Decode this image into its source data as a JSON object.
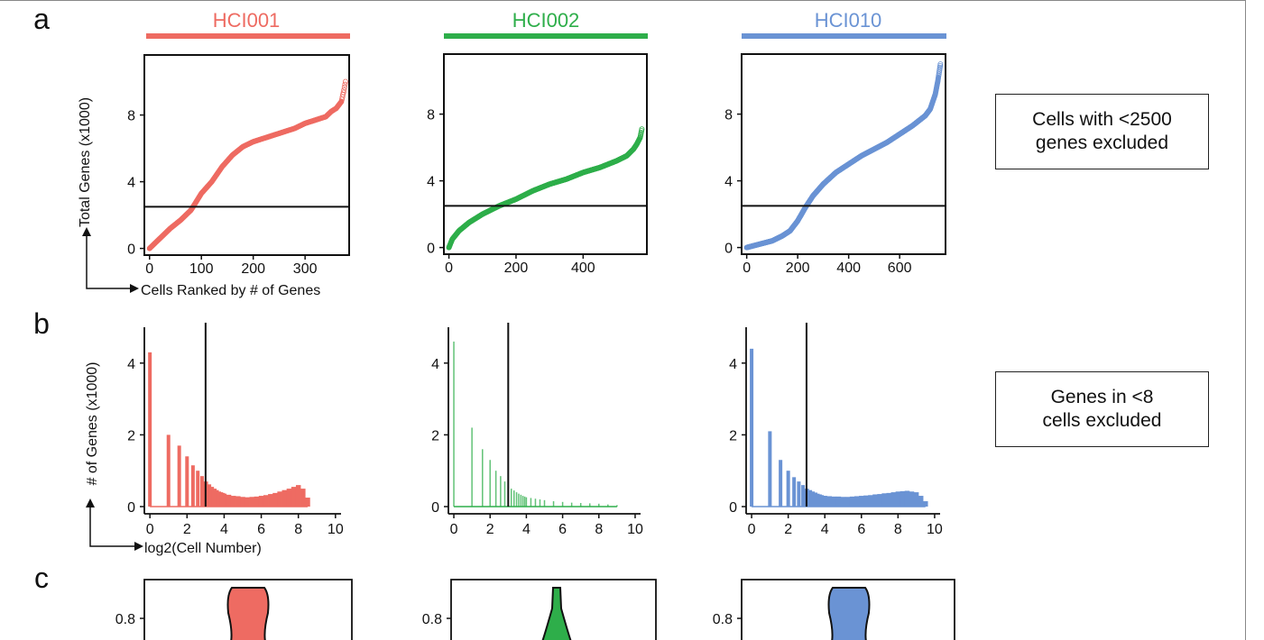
{
  "panel_letters": [
    "a",
    "b",
    "c"
  ],
  "sample_names": [
    "HCI001",
    "HCI002",
    "HCI010"
  ],
  "colors": {
    "HCI001": "#ee6b62",
    "HCI002": "#2eae4a",
    "HCI010": "#6a93d4",
    "axis": "#111111"
  },
  "notes": {
    "genes_filter": "Cells with <2500\ngenes excluded",
    "cells_filter": "Genes in <8\ncells excluded"
  },
  "chart_data": [
    {
      "type": "scatter",
      "panel": "a",
      "title": "HCI001",
      "xlabel": "Cells Ranked by # of Genes",
      "ylabel": "Total Genes (x1000)",
      "xlim": [
        -10,
        385
      ],
      "ylim": [
        -0.4,
        11.6
      ],
      "xticks": [
        0,
        100,
        200,
        300
      ],
      "yticks": [
        0,
        4,
        8
      ],
      "threshold_y": 2.5,
      "series": [
        {
          "x": [
            0,
            20,
            40,
            60,
            80,
            100,
            120,
            140,
            160,
            180,
            200,
            220,
            240,
            260,
            280,
            300,
            320,
            340,
            350,
            360,
            370,
            375,
            378
          ],
          "values": [
            0,
            0.6,
            1.2,
            1.7,
            2.3,
            3.3,
            4.0,
            4.9,
            5.6,
            6.1,
            6.4,
            6.6,
            6.8,
            7.0,
            7.2,
            7.5,
            7.7,
            7.9,
            8.2,
            8.4,
            8.8,
            9.5,
            10.0
          ]
        }
      ]
    },
    {
      "type": "scatter",
      "panel": "a",
      "title": "HCI002",
      "xlabel": "",
      "ylabel": "",
      "xlim": [
        -15,
        590
      ],
      "ylim": [
        -0.4,
        11.6
      ],
      "xticks": [
        0,
        200,
        400
      ],
      "yticks": [
        0,
        4,
        8
      ],
      "threshold_y": 2.5,
      "series": [
        {
          "x": [
            0,
            10,
            30,
            60,
            100,
            150,
            200,
            250,
            300,
            350,
            400,
            450,
            500,
            530,
            550,
            560,
            570,
            575
          ],
          "values": [
            0,
            0.5,
            1.0,
            1.5,
            2.0,
            2.5,
            2.9,
            3.4,
            3.8,
            4.1,
            4.5,
            4.8,
            5.2,
            5.5,
            5.9,
            6.2,
            6.6,
            7.1
          ]
        }
      ]
    },
    {
      "type": "scatter",
      "panel": "a",
      "title": "HCI010",
      "xlabel": "",
      "ylabel": "",
      "xlim": [
        -20,
        780
      ],
      "ylim": [
        -0.4,
        11.6
      ],
      "xticks": [
        0,
        200,
        400,
        600
      ],
      "yticks": [
        0,
        4,
        8
      ],
      "threshold_y": 2.5,
      "series": [
        {
          "x": [
            0,
            50,
            100,
            140,
            170,
            200,
            230,
            260,
            300,
            350,
            400,
            450,
            500,
            550,
            600,
            650,
            700,
            720,
            740,
            750,
            760
          ],
          "values": [
            0,
            0.2,
            0.4,
            0.7,
            1.0,
            1.6,
            2.4,
            3.1,
            3.8,
            4.5,
            5.0,
            5.5,
            5.9,
            6.3,
            6.8,
            7.3,
            7.9,
            8.3,
            9.2,
            10.0,
            11.0
          ]
        }
      ]
    },
    {
      "type": "bar",
      "panel": "b",
      "title": "",
      "xlabel": "log2(Cell Number)",
      "ylabel": "# of Genes (x1000)",
      "xlim": [
        -0.3,
        10.3
      ],
      "ylim": [
        0,
        5
      ],
      "xticks": [
        0,
        2,
        4,
        6,
        8,
        10
      ],
      "yticks": [
        0,
        2,
        4
      ],
      "threshold_x": 3,
      "x": [
        0,
        1,
        1.58,
        2,
        2.32,
        2.58,
        2.81,
        3,
        3.17,
        3.32,
        3.46,
        3.58,
        3.7,
        3.81,
        3.91,
        4,
        4.25,
        4.5,
        4.75,
        5,
        5.25,
        5.5,
        5.75,
        6,
        6.25,
        6.5,
        6.75,
        7,
        7.25,
        7.5,
        7.75,
        8,
        8.25,
        8.5
      ],
      "values": [
        4.3,
        2.0,
        1.7,
        1.4,
        1.15,
        1.0,
        0.85,
        0.7,
        0.62,
        0.55,
        0.5,
        0.46,
        0.42,
        0.4,
        0.38,
        0.36,
        0.33,
        0.3,
        0.29,
        0.27,
        0.26,
        0.27,
        0.28,
        0.3,
        0.32,
        0.35,
        0.38,
        0.42,
        0.46,
        0.5,
        0.55,
        0.6,
        0.5,
        0.25
      ]
    },
    {
      "type": "bar",
      "panel": "b",
      "title": "",
      "xlabel": "",
      "ylabel": "",
      "xlim": [
        -0.3,
        10.3
      ],
      "ylim": [
        0,
        5
      ],
      "xticks": [
        0,
        2,
        4,
        6,
        8,
        10
      ],
      "yticks": [
        0,
        2,
        4
      ],
      "threshold_x": 3,
      "x": [
        0,
        1,
        1.58,
        2,
        2.32,
        2.58,
        2.81,
        3,
        3.17,
        3.32,
        3.46,
        3.58,
        3.7,
        3.81,
        3.91,
        4,
        4.25,
        4.5,
        4.75,
        5,
        5.5,
        6,
        6.5,
        7,
        7.5,
        8,
        8.5,
        9
      ],
      "values": [
        4.6,
        2.2,
        1.6,
        1.3,
        1.0,
        0.85,
        0.7,
        0.55,
        0.5,
        0.45,
        0.4,
        0.36,
        0.33,
        0.3,
        0.28,
        0.26,
        0.24,
        0.22,
        0.2,
        0.18,
        0.15,
        0.13,
        0.11,
        0.1,
        0.09,
        0.08,
        0.06,
        0.04
      ]
    },
    {
      "type": "bar",
      "panel": "b",
      "title": "",
      "xlabel": "",
      "ylabel": "",
      "xlim": [
        -0.3,
        10.3
      ],
      "ylim": [
        0,
        5
      ],
      "xticks": [
        0,
        2,
        4,
        6,
        8,
        10
      ],
      "yticks": [
        0,
        2,
        4
      ],
      "threshold_x": 3,
      "x": [
        0,
        1,
        1.58,
        2,
        2.32,
        2.58,
        2.81,
        3,
        3.17,
        3.32,
        3.46,
        3.58,
        3.7,
        3.81,
        3.91,
        4,
        4.25,
        4.5,
        4.75,
        5,
        5.25,
        5.5,
        5.75,
        6,
        6.25,
        6.5,
        6.75,
        7,
        7.25,
        7.5,
        7.75,
        8,
        8.25,
        8.5,
        8.75,
        9,
        9.25,
        9.5
      ],
      "values": [
        4.4,
        2.1,
        1.3,
        1.0,
        0.82,
        0.7,
        0.6,
        0.5,
        0.46,
        0.42,
        0.39,
        0.36,
        0.34,
        0.32,
        0.3,
        0.3,
        0.29,
        0.28,
        0.28,
        0.27,
        0.27,
        0.28,
        0.29,
        0.3,
        0.31,
        0.32,
        0.34,
        0.35,
        0.37,
        0.38,
        0.4,
        0.42,
        0.43,
        0.44,
        0.42,
        0.4,
        0.3,
        0.15
      ]
    },
    {
      "type": "violin",
      "panel": "c",
      "title": "",
      "yticks": [
        0.8
      ],
      "ylim": [
        0.7,
        0.92
      ],
      "shape": "wide"
    },
    {
      "type": "violin",
      "panel": "c",
      "title": "",
      "yticks": [
        0.8
      ],
      "ylim": [
        0.7,
        0.92
      ],
      "shape": "narrow"
    },
    {
      "type": "violin",
      "panel": "c",
      "title": "",
      "yticks": [
        0.8
      ],
      "ylim": [
        0.7,
        0.92
      ],
      "shape": "wide"
    }
  ]
}
